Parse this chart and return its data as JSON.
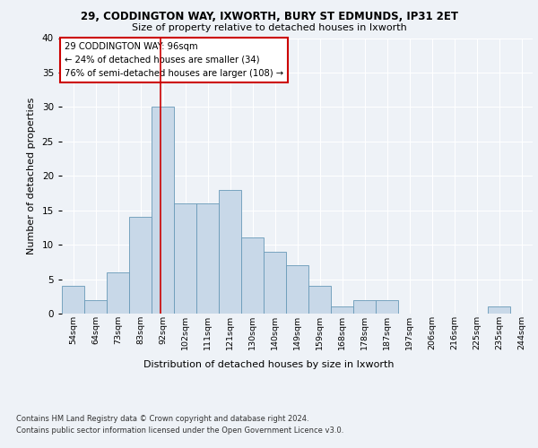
{
  "title1": "29, CODDINGTON WAY, IXWORTH, BURY ST EDMUNDS, IP31 2ET",
  "title2": "Size of property relative to detached houses in Ixworth",
  "xlabel": "Distribution of detached houses by size in Ixworth",
  "ylabel": "Number of detached properties",
  "categories": [
    "54sqm",
    "64sqm",
    "73sqm",
    "83sqm",
    "92sqm",
    "102sqm",
    "111sqm",
    "121sqm",
    "130sqm",
    "140sqm",
    "149sqm",
    "159sqm",
    "168sqm",
    "178sqm",
    "187sqm",
    "197sqm",
    "206sqm",
    "216sqm",
    "225sqm",
    "235sqm",
    "244sqm"
  ],
  "values": [
    4,
    2,
    6,
    14,
    30,
    16,
    16,
    18,
    11,
    9,
    7,
    4,
    1,
    2,
    2,
    0,
    0,
    0,
    0,
    1,
    0
  ],
  "bar_color": "#c8d8e8",
  "bar_edge_color": "#6899b8",
  "vline_color": "#cc0000",
  "annotation_text": "29 CODDINGTON WAY: 96sqm\n← 24% of detached houses are smaller (34)\n76% of semi-detached houses are larger (108) →",
  "annotation_box_edge": "#cc0000",
  "ylim": [
    0,
    40
  ],
  "yticks": [
    0,
    5,
    10,
    15,
    20,
    25,
    30,
    35,
    40
  ],
  "footer1": "Contains HM Land Registry data © Crown copyright and database right 2024.",
  "footer2": "Contains public sector information licensed under the Open Government Licence v3.0.",
  "background_color": "#eef2f7",
  "grid_color": "#ffffff"
}
